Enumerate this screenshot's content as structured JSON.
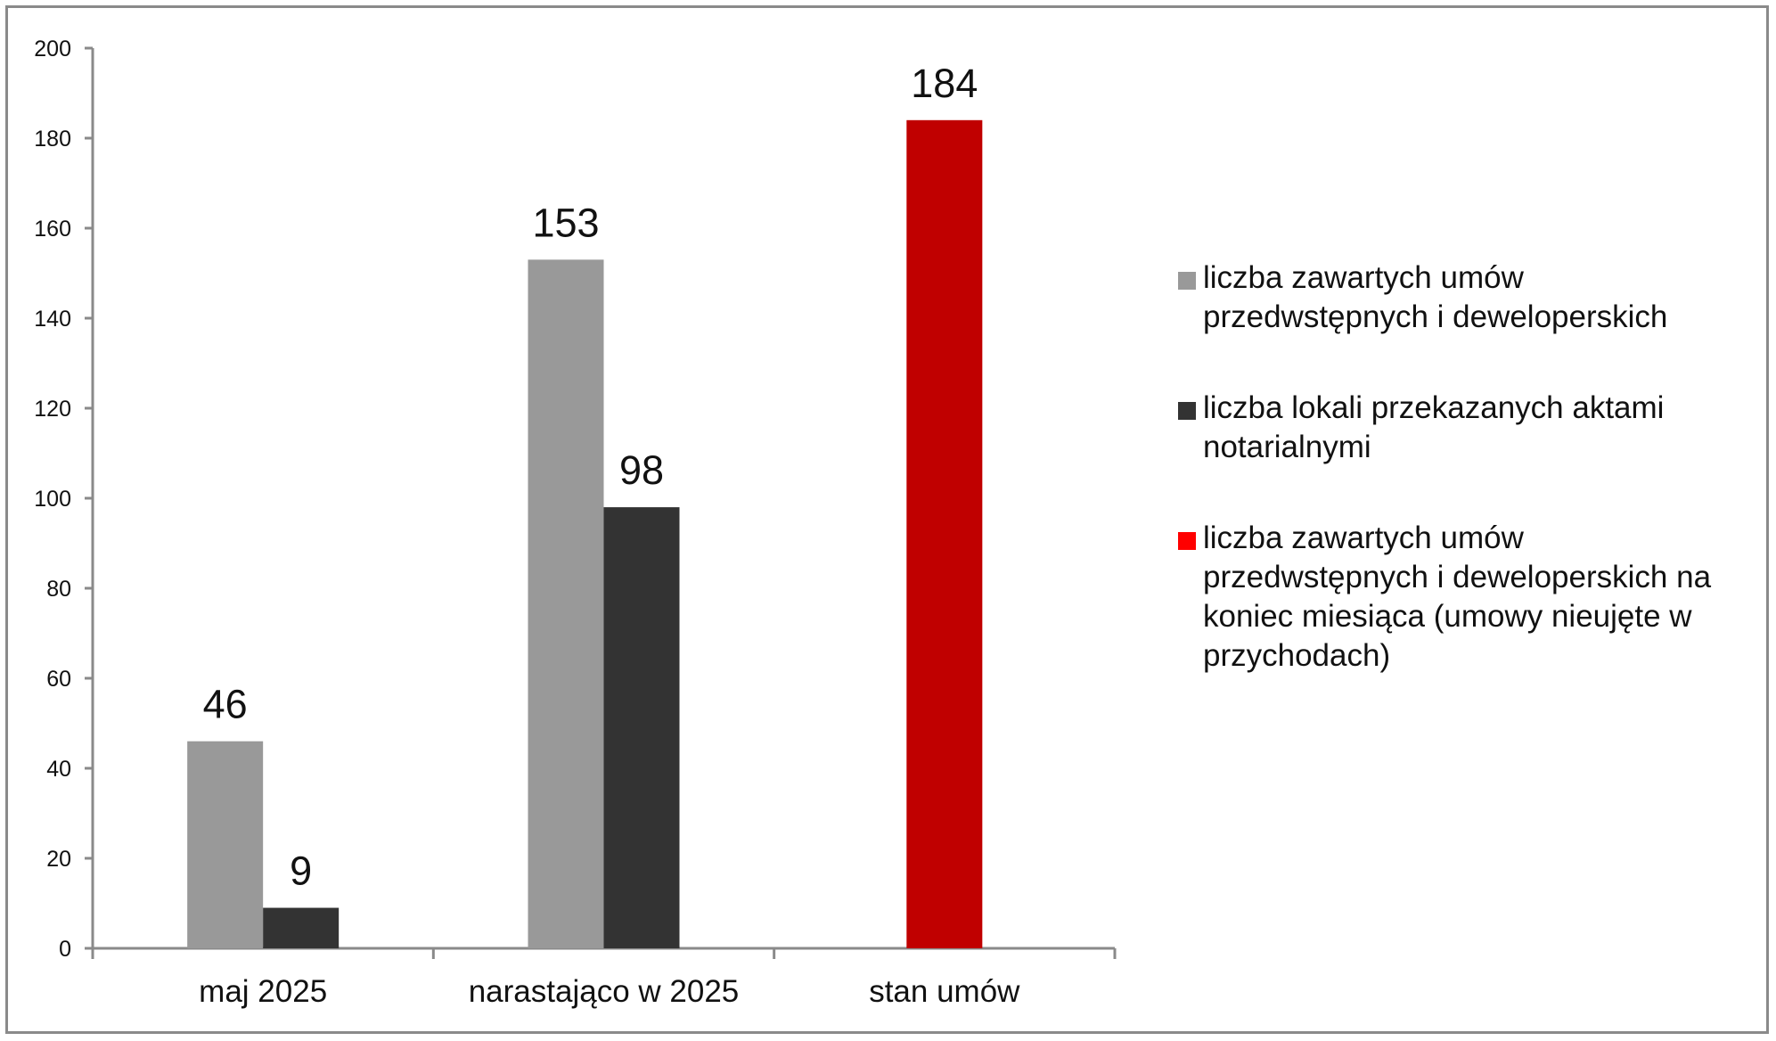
{
  "chart_data": {
    "type": "bar",
    "categories": [
      "maj 2025",
      "narastająco w 2025",
      "stan umów"
    ],
    "series": [
      {
        "name": "liczba zawartych umów przedwstępnych i deweloperskich",
        "values": [
          46,
          153,
          null
        ],
        "color": "#999999"
      },
      {
        "name": "liczba lokali przekazanych aktami notarialnymi",
        "values": [
          9,
          98,
          null
        ],
        "color": "#333333"
      },
      {
        "name": "liczba zawartych umów przedwstępnych i deweloperskich na koniec miesiąca (umowy nieujęte w przychodach)",
        "values": [
          null,
          null,
          184
        ],
        "color": "#c00000",
        "legend_color": "#ff0000"
      }
    ],
    "ylim": [
      0,
      200
    ],
    "yticks": [
      0,
      20,
      40,
      60,
      80,
      100,
      120,
      140,
      160,
      180,
      200
    ],
    "title": "",
    "xlabel": "",
    "ylabel": "",
    "grid": false,
    "legend_position": "right"
  }
}
